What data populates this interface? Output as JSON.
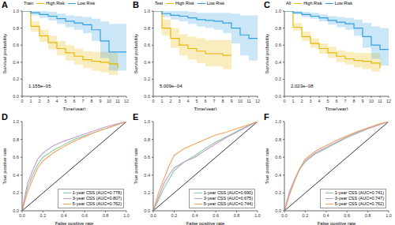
{
  "chart_data": [
    {
      "type": "line",
      "title": "A",
      "legend_title": "Train",
      "legend": "top",
      "annotation": "1.155e−05",
      "x_label": "Time(year)",
      "y_label": "Survival probability",
      "line_style": "step",
      "x": [
        0,
        1,
        2,
        3,
        4,
        5,
        6,
        7,
        8,
        9,
        10,
        11,
        12
      ],
      "xlim": [
        0,
        12
      ],
      "xticks": [
        0,
        1,
        2,
        3,
        4,
        5,
        6,
        7,
        8,
        9,
        10,
        11,
        12
      ],
      "ylim": [
        0,
        1
      ],
      "yticks": [
        {
          "value": 0,
          "label": "0.0"
        },
        {
          "value": 0.2,
          "label": "0.2"
        },
        {
          "value": 0.4,
          "label": "0.4"
        },
        {
          "value": 0.6,
          "label": "0.6"
        },
        {
          "value": 0.8,
          "label": "0.8"
        },
        {
          "value": 1,
          "label": "1.0"
        }
      ],
      "series": [
        {
          "name": "High Risk",
          "color": "#E7B800",
          "values": [
            1,
            0.82,
            0.71,
            0.63,
            0.56,
            0.51,
            0.47,
            0.43,
            0.41,
            0.4,
            0.38,
            0.33,
            null
          ],
          "lower": [
            1,
            0.76,
            0.64,
            0.55,
            0.48,
            0.42,
            0.37,
            0.33,
            0.3,
            0.28,
            0.25,
            0.18,
            null
          ],
          "upper": [
            1,
            0.88,
            0.78,
            0.71,
            0.65,
            0.6,
            0.56,
            0.53,
            0.52,
            0.52,
            0.51,
            0.5,
            null
          ]
        },
        {
          "name": "Low Risk",
          "color": "#2E9FDF",
          "values": [
            1,
            0.98,
            0.96,
            0.94,
            0.91,
            0.88,
            0.86,
            0.84,
            0.78,
            0.65,
            0.52,
            0.52,
            0.52
          ],
          "lower": [
            1,
            0.95,
            0.92,
            0.89,
            0.85,
            0.81,
            0.78,
            0.74,
            0.65,
            0.45,
            0.3,
            0.3,
            0.3
          ],
          "upper": [
            1,
            1,
            1,
            0.99,
            0.97,
            0.95,
            0.94,
            0.93,
            0.91,
            0.88,
            0.85,
            0.85,
            0.85
          ]
        }
      ]
    },
    {
      "type": "line",
      "title": "B",
      "legend_title": "Test",
      "legend": "top",
      "annotation": "5.009e−04",
      "x_label": "Time(year)",
      "y_label": "Survival probability",
      "line_style": "step",
      "x": [
        0,
        1,
        2,
        3,
        4,
        5,
        6,
        7,
        8,
        9,
        10,
        11,
        12
      ],
      "xlim": [
        0,
        12
      ],
      "xticks": [
        0,
        1,
        2,
        3,
        4,
        5,
        6,
        7,
        8,
        9,
        10,
        11,
        12
      ],
      "ylim": [
        0,
        1
      ],
      "yticks": [
        {
          "value": 0,
          "label": "0.0"
        },
        {
          "value": 0.2,
          "label": "0.2"
        },
        {
          "value": 0.4,
          "label": "0.4"
        },
        {
          "value": 0.6,
          "label": "0.6"
        },
        {
          "value": 0.8,
          "label": "0.8"
        },
        {
          "value": 1,
          "label": "1.0"
        }
      ],
      "series": [
        {
          "name": "High Risk",
          "color": "#E7B800",
          "values": [
            1,
            0.8,
            0.68,
            0.6,
            0.56,
            0.53,
            0.5,
            0.5,
            0.48,
            0.48,
            null,
            null,
            null
          ],
          "lower": [
            1,
            0.71,
            0.57,
            0.48,
            0.43,
            0.39,
            0.35,
            0.35,
            0.32,
            0.32,
            null,
            null,
            null
          ],
          "upper": [
            1,
            0.9,
            0.8,
            0.73,
            0.7,
            0.68,
            0.66,
            0.66,
            0.66,
            0.66,
            null,
            null,
            null
          ]
        },
        {
          "name": "Low Risk",
          "color": "#2E9FDF",
          "values": [
            1,
            0.97,
            0.95,
            0.94,
            0.92,
            0.9,
            0.89,
            0.88,
            0.86,
            0.8,
            0.72,
            0.68,
            0.68
          ],
          "lower": [
            1,
            0.93,
            0.9,
            0.88,
            0.85,
            0.82,
            0.8,
            0.78,
            0.74,
            0.62,
            0.48,
            0.42,
            0.42
          ],
          "upper": [
            1,
            1,
            1,
            1,
            0.99,
            0.98,
            0.98,
            0.98,
            0.98,
            0.97,
            0.95,
            0.95,
            0.95
          ]
        }
      ]
    },
    {
      "type": "line",
      "title": "C",
      "legend_title": "All",
      "legend": "top",
      "annotation": "2.023e−08",
      "x_label": "Time(year)",
      "y_label": "Survival probability",
      "line_style": "step",
      "x": [
        0,
        1,
        2,
        3,
        4,
        5,
        6,
        7,
        8,
        9,
        10,
        11,
        12
      ],
      "xlim": [
        0,
        12
      ],
      "xticks": [
        0,
        1,
        2,
        3,
        4,
        5,
        6,
        7,
        8,
        9,
        10,
        11,
        12
      ],
      "ylim": [
        0,
        1
      ],
      "yticks": [
        {
          "value": 0,
          "label": "0.0"
        },
        {
          "value": 0.2,
          "label": "0.2"
        },
        {
          "value": 0.4,
          "label": "0.4"
        },
        {
          "value": 0.6,
          "label": "0.6"
        },
        {
          "value": 0.8,
          "label": "0.8"
        },
        {
          "value": 1,
          "label": "1.0"
        }
      ],
      "series": [
        {
          "name": "High Risk",
          "color": "#E7B800",
          "values": [
            1,
            0.81,
            0.7,
            0.62,
            0.56,
            0.51,
            0.47,
            0.44,
            0.42,
            0.41,
            0.39,
            0.33,
            null
          ],
          "lower": [
            1,
            0.77,
            0.65,
            0.57,
            0.5,
            0.45,
            0.4,
            0.37,
            0.34,
            0.32,
            0.29,
            0.2,
            null
          ],
          "upper": [
            1,
            0.86,
            0.76,
            0.68,
            0.62,
            0.58,
            0.54,
            0.52,
            0.51,
            0.51,
            0.51,
            0.5,
            null
          ]
        },
        {
          "name": "Low Risk",
          "color": "#2E9FDF",
          "values": [
            1,
            0.98,
            0.96,
            0.94,
            0.92,
            0.89,
            0.87,
            0.85,
            0.8,
            0.7,
            0.6,
            0.55,
            0.55
          ],
          "lower": [
            1,
            0.96,
            0.93,
            0.91,
            0.88,
            0.84,
            0.81,
            0.78,
            0.71,
            0.57,
            0.44,
            0.36,
            0.36
          ],
          "upper": [
            1,
            1,
            0.99,
            0.98,
            0.96,
            0.94,
            0.93,
            0.92,
            0.9,
            0.86,
            0.82,
            0.8,
            0.8
          ]
        }
      ]
    },
    {
      "type": "line",
      "title": "D",
      "legend": "lower right",
      "x_label": "False positive rate",
      "y_label": "True positive rate",
      "line_style": "solid",
      "xlim": [
        0,
        1
      ],
      "xticks": [
        {
          "value": 0,
          "label": "0.0"
        },
        {
          "value": 0.2,
          "label": "0.2"
        },
        {
          "value": 0.4,
          "label": "0.4"
        },
        {
          "value": 0.6,
          "label": "0.6"
        },
        {
          "value": 0.8,
          "label": "0.8"
        },
        {
          "value": 1,
          "label": "1.0"
        }
      ],
      "ylim": [
        0,
        1
      ],
      "yticks": [
        {
          "value": 0,
          "label": "0.0"
        },
        {
          "value": 0.2,
          "label": "0.2"
        },
        {
          "value": 0.4,
          "label": "0.4"
        },
        {
          "value": 0.6,
          "label": "0.6"
        },
        {
          "value": 0.8,
          "label": "0.8"
        },
        {
          "value": 1,
          "label": "1.0"
        }
      ],
      "series": [
        {
          "name": "1-year CSS (AUC=0.778)",
          "color": "#88c999",
          "x": [
            0,
            0.05,
            0.1,
            0.15,
            0.2,
            0.3,
            0.4,
            0.5,
            0.6,
            0.7,
            0.8,
            0.9,
            1
          ],
          "values": [
            0,
            0.25,
            0.4,
            0.52,
            0.6,
            0.68,
            0.74,
            0.8,
            0.84,
            0.88,
            0.92,
            0.96,
            1
          ]
        },
        {
          "name": "3-year CSS (AUC=0.807)",
          "color": "#c39bd3",
          "x": [
            0,
            0.05,
            0.1,
            0.15,
            0.2,
            0.3,
            0.4,
            0.5,
            0.6,
            0.7,
            0.8,
            0.9,
            1
          ],
          "values": [
            0,
            0.3,
            0.45,
            0.58,
            0.65,
            0.73,
            0.78,
            0.82,
            0.86,
            0.9,
            0.94,
            0.97,
            1
          ]
        },
        {
          "name": "5-year CSS (AUC=0.762)",
          "color": "#f5a25d",
          "x": [
            0,
            0.05,
            0.1,
            0.15,
            0.2,
            0.3,
            0.4,
            0.5,
            0.6,
            0.7,
            0.8,
            0.9,
            1
          ],
          "values": [
            0,
            0.2,
            0.35,
            0.48,
            0.56,
            0.65,
            0.72,
            0.78,
            0.83,
            0.88,
            0.92,
            0.96,
            1
          ]
        }
      ]
    },
    {
      "type": "line",
      "title": "E",
      "legend": "lower right",
      "x_label": "False positive rate",
      "y_label": "True positive rate",
      "line_style": "solid",
      "xlim": [
        0,
        1
      ],
      "xticks": [
        {
          "value": 0,
          "label": "0.0"
        },
        {
          "value": 0.2,
          "label": "0.2"
        },
        {
          "value": 0.4,
          "label": "0.4"
        },
        {
          "value": 0.6,
          "label": "0.6"
        },
        {
          "value": 0.8,
          "label": "0.8"
        },
        {
          "value": 1,
          "label": "1.0"
        }
      ],
      "ylim": [
        0,
        1
      ],
      "yticks": [
        {
          "value": 0,
          "label": "0.0"
        },
        {
          "value": 0.2,
          "label": "0.2"
        },
        {
          "value": 0.4,
          "label": "0.4"
        },
        {
          "value": 0.6,
          "label": "0.6"
        },
        {
          "value": 0.8,
          "label": "0.8"
        },
        {
          "value": 1,
          "label": "1.0"
        }
      ],
      "series": [
        {
          "name": "1-year CSS (AUC=0.690)",
          "color": "#88c999",
          "x": [
            0,
            0.05,
            0.1,
            0.15,
            0.2,
            0.3,
            0.4,
            0.5,
            0.6,
            0.7,
            0.8,
            0.9,
            1
          ],
          "values": [
            0,
            0.12,
            0.25,
            0.35,
            0.45,
            0.55,
            0.62,
            0.7,
            0.77,
            0.83,
            0.89,
            0.95,
            1
          ]
        },
        {
          "name": "3-year CSS (AUC=0.675)",
          "color": "#c39bd3",
          "x": [
            0,
            0.05,
            0.1,
            0.15,
            0.2,
            0.3,
            0.4,
            0.5,
            0.6,
            0.7,
            0.8,
            0.9,
            1
          ],
          "values": [
            0,
            0.15,
            0.3,
            0.4,
            0.48,
            0.55,
            0.6,
            0.68,
            0.75,
            0.82,
            0.88,
            0.94,
            1
          ]
        },
        {
          "name": "5-year CSS (AUC=0.744)",
          "color": "#f5a25d",
          "x": [
            0,
            0.05,
            0.1,
            0.15,
            0.2,
            0.3,
            0.4,
            0.5,
            0.6,
            0.7,
            0.8,
            0.9,
            1
          ],
          "values": [
            0,
            0.2,
            0.35,
            0.5,
            0.62,
            0.7,
            0.75,
            0.8,
            0.85,
            0.88,
            0.92,
            0.96,
            1
          ]
        }
      ]
    },
    {
      "type": "line",
      "title": "F",
      "legend": "lower right",
      "x_label": "False positive rate",
      "y_label": "True positive rate",
      "line_style": "solid",
      "xlim": [
        0,
        1
      ],
      "xticks": [
        {
          "value": 0,
          "label": "0.0"
        },
        {
          "value": 0.2,
          "label": "0.2"
        },
        {
          "value": 0.4,
          "label": "0.4"
        },
        {
          "value": 0.6,
          "label": "0.6"
        },
        {
          "value": 0.8,
          "label": "0.8"
        },
        {
          "value": 1,
          "label": "1.0"
        }
      ],
      "ylim": [
        0,
        1
      ],
      "yticks": [
        {
          "value": 0,
          "label": "0.0"
        },
        {
          "value": 0.2,
          "label": "0.2"
        },
        {
          "value": 0.4,
          "label": "0.4"
        },
        {
          "value": 0.6,
          "label": "0.6"
        },
        {
          "value": 0.8,
          "label": "0.8"
        },
        {
          "value": 1,
          "label": "1.0"
        }
      ],
      "series": [
        {
          "name": "1-year CSS (AUC=0.741)",
          "color": "#88c999",
          "x": [
            0,
            0.05,
            0.1,
            0.15,
            0.2,
            0.3,
            0.4,
            0.5,
            0.6,
            0.7,
            0.8,
            0.9,
            1
          ],
          "values": [
            0,
            0.2,
            0.35,
            0.47,
            0.55,
            0.64,
            0.7,
            0.76,
            0.82,
            0.87,
            0.92,
            0.96,
            1
          ]
        },
        {
          "name": "3-year CSS (AUC=0.747)",
          "color": "#c39bd3",
          "x": [
            0,
            0.05,
            0.1,
            0.15,
            0.2,
            0.3,
            0.4,
            0.5,
            0.6,
            0.7,
            0.8,
            0.9,
            1
          ],
          "values": [
            0,
            0.22,
            0.36,
            0.48,
            0.56,
            0.65,
            0.71,
            0.77,
            0.83,
            0.88,
            0.92,
            0.96,
            1
          ]
        },
        {
          "name": "5-year CSS (AUC=0.762)",
          "color": "#f5a25d",
          "x": [
            0,
            0.05,
            0.1,
            0.15,
            0.2,
            0.3,
            0.4,
            0.5,
            0.6,
            0.7,
            0.8,
            0.9,
            1
          ],
          "values": [
            0,
            0.18,
            0.34,
            0.48,
            0.58,
            0.67,
            0.73,
            0.79,
            0.84,
            0.89,
            0.93,
            0.97,
            1
          ]
        }
      ]
    }
  ]
}
